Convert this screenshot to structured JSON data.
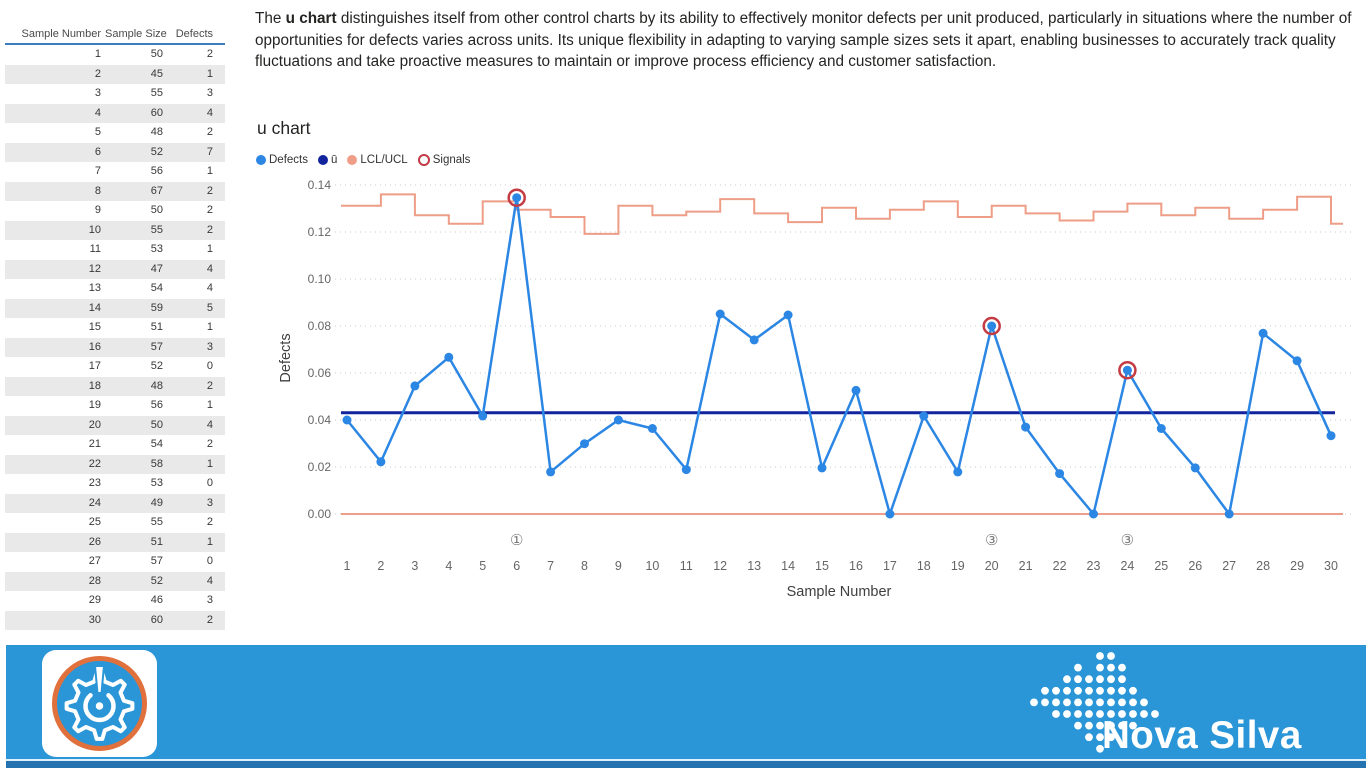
{
  "description": {
    "lead": "The ",
    "bold": "u chart",
    "rest": " distinguishes itself from other control charts by its ability to effectively monitor defects per unit produced, particularly in situations where the number of opportunities for defects varies across units. Its unique flexibility in adapting to varying sample sizes sets it apart, enabling businesses to accurately track quality fluctuations and take proactive measures to maintain or improve process efficiency and customer satisfaction."
  },
  "table": {
    "columns": [
      "Sample Number",
      "Sample Size",
      "Defects"
    ],
    "rows": [
      [
        1,
        50,
        2
      ],
      [
        2,
        45,
        1
      ],
      [
        3,
        55,
        3
      ],
      [
        4,
        60,
        4
      ],
      [
        5,
        48,
        2
      ],
      [
        6,
        52,
        7
      ],
      [
        7,
        56,
        1
      ],
      [
        8,
        67,
        2
      ],
      [
        9,
        50,
        2
      ],
      [
        10,
        55,
        2
      ],
      [
        11,
        53,
        1
      ],
      [
        12,
        47,
        4
      ],
      [
        13,
        54,
        4
      ],
      [
        14,
        59,
        5
      ],
      [
        15,
        51,
        1
      ],
      [
        16,
        57,
        3
      ],
      [
        17,
        52,
        0
      ],
      [
        18,
        48,
        2
      ],
      [
        19,
        56,
        1
      ],
      [
        20,
        50,
        4
      ],
      [
        21,
        54,
        2
      ],
      [
        22,
        58,
        1
      ],
      [
        23,
        53,
        0
      ],
      [
        24,
        49,
        3
      ],
      [
        25,
        55,
        2
      ],
      [
        26,
        51,
        1
      ],
      [
        27,
        57,
        0
      ],
      [
        28,
        52,
        4
      ],
      [
        29,
        46,
        3
      ],
      [
        30,
        60,
        2
      ]
    ]
  },
  "chart_data": {
    "type": "line",
    "title": "u chart",
    "xlabel": "Sample Number",
    "ylabel": "Defects",
    "ylim": [
      0,
      0.14
    ],
    "yticks": [
      0,
      0.02,
      0.04,
      0.06,
      0.08,
      0.1,
      0.12,
      0.14
    ],
    "grid": "horizontal-dotted",
    "legend_position": "top-left",
    "categories": [
      1,
      2,
      3,
      4,
      5,
      6,
      7,
      8,
      9,
      10,
      11,
      12,
      13,
      14,
      15,
      16,
      17,
      18,
      19,
      20,
      21,
      22,
      23,
      24,
      25,
      26,
      27,
      28,
      29,
      30
    ],
    "series": [
      {
        "name": "Defects",
        "kind": "line-markers",
        "color": "#2B86E4",
        "values": [
          0.04,
          0.0222,
          0.0545,
          0.0667,
          0.0417,
          0.1346,
          0.0179,
          0.0299,
          0.04,
          0.0364,
          0.0189,
          0.0851,
          0.0741,
          0.0847,
          0.0196,
          0.0526,
          0,
          0.0417,
          0.0179,
          0.08,
          0.037,
          0.0172,
          0,
          0.0612,
          0.0364,
          0.0196,
          0,
          0.0769,
          0.0652,
          0.0333
        ]
      },
      {
        "name": "ū",
        "kind": "center-line",
        "color": "#12239E",
        "value": 0.0431
      },
      {
        "name": "UCL",
        "kind": "step-line",
        "color": "#EE9D86",
        "values": [
          0.1312,
          0.136,
          0.1271,
          0.1235,
          0.133,
          0.1295,
          0.1264,
          0.1192,
          0.1312,
          0.1271,
          0.1287,
          0.134,
          0.1279,
          0.1242,
          0.1303,
          0.1256,
          0.1295,
          0.133,
          0.1264,
          0.1312,
          0.1279,
          0.1249,
          0.1287,
          0.1321,
          0.1271,
          0.1303,
          0.1256,
          0.1295,
          0.135,
          0.1235
        ]
      },
      {
        "name": "LCL",
        "kind": "flat-line",
        "color": "#EE9D86",
        "value": 0
      }
    ],
    "signals": [
      {
        "sample": 6,
        "rule_label": "①"
      },
      {
        "sample": 20,
        "rule_label": "③"
      },
      {
        "sample": 24,
        "rule_label": "③"
      }
    ],
    "legend": [
      {
        "label": "Defects",
        "color": "#2B86E4",
        "marker": "dot"
      },
      {
        "label": "ū",
        "color": "#12239E",
        "marker": "dot"
      },
      {
        "label": "LCL/UCL",
        "color": "#EE9D86",
        "marker": "dot"
      },
      {
        "label": "Signals",
        "color": "#C43B44",
        "marker": "ring"
      }
    ],
    "colors": {
      "defects": "#2B86E4",
      "center": "#12239E",
      "limit": "#EE9D86",
      "signal": "#C43B44"
    }
  },
  "footer": {
    "brand": "Nova Silva"
  }
}
